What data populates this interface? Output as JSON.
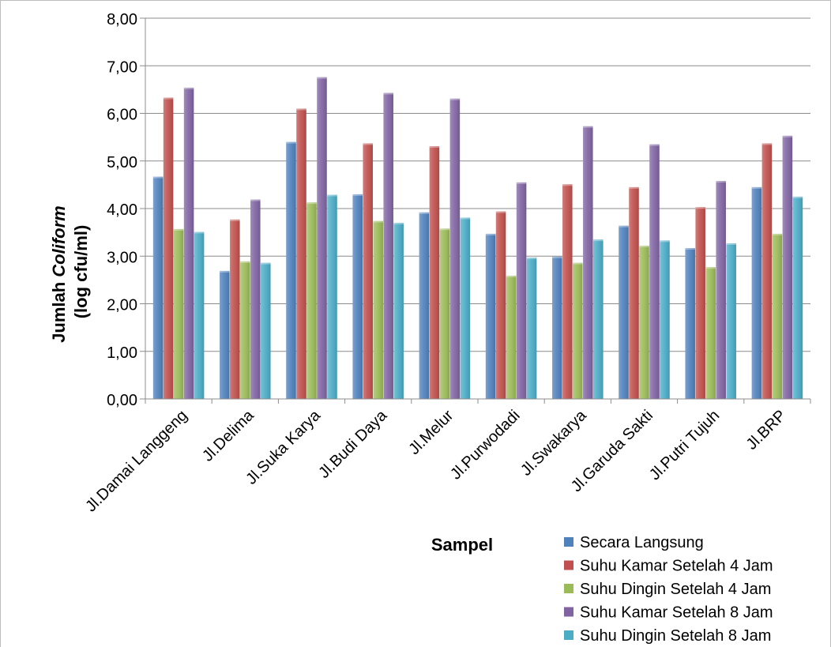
{
  "chart_data": {
    "type": "bar",
    "title": "",
    "xlabel": "Sampel",
    "ylabel_prefix": "Jumlah ",
    "ylabel_italic": "Coliform",
    "ylabel_line2": "(log cfu/ml)",
    "ylim": [
      0,
      8
    ],
    "y_ticks": [
      "0,00",
      "1,00",
      "2,00",
      "3,00",
      "4,00",
      "5,00",
      "6,00",
      "7,00",
      "8,00"
    ],
    "grid": true,
    "legend_position": "bottom-right",
    "categories": [
      "Jl.Damai Langgeng",
      "Jl.Delima",
      "Jl.Suka Karya",
      "Jl.Budi Daya",
      "Jl.Melur",
      "Jl.Purwodadi",
      "Jl.Swakarya",
      "Jl.Garuda Sakti",
      "Jl.Putri Tujuh",
      "Jl.BRP"
    ],
    "series": [
      {
        "name": "Secara Langsung",
        "color": "#4f81bd",
        "values": [
          4.67,
          2.69,
          5.4,
          4.3,
          3.92,
          3.47,
          2.99,
          3.64,
          3.17,
          4.45
        ]
      },
      {
        "name": "Suhu Kamar Setelah 4 Jam",
        "color": "#c0504d",
        "values": [
          6.33,
          3.77,
          6.1,
          5.37,
          5.31,
          3.94,
          4.51,
          4.45,
          4.03,
          5.37
        ]
      },
      {
        "name": "Suhu Dingin Setelah 4 Jam",
        "color": "#9bbb59",
        "values": [
          3.57,
          2.89,
          4.13,
          3.74,
          3.58,
          2.59,
          2.86,
          3.22,
          2.77,
          3.47
        ]
      },
      {
        "name": "Suhu Kamar Setelah 8 Jam",
        "color": "#8064a2",
        "values": [
          6.54,
          4.19,
          6.76,
          6.43,
          6.31,
          4.55,
          5.73,
          5.35,
          4.58,
          5.53
        ]
      },
      {
        "name": "Suhu Dingin Setelah 8 Jam",
        "color": "#4bacc6",
        "values": [
          3.51,
          2.86,
          4.29,
          3.7,
          3.81,
          2.97,
          3.35,
          3.33,
          3.27,
          4.25
        ]
      }
    ]
  }
}
